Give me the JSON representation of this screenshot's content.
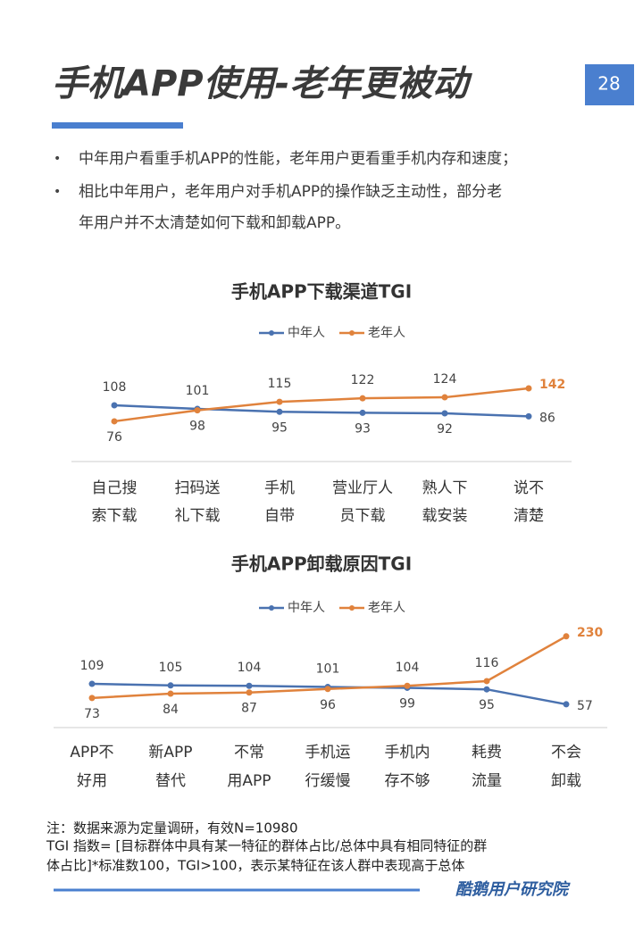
{
  "header": {
    "title": "手机APP使用-老年更被动",
    "page_number": "28"
  },
  "bullets": [
    "中年用户看重手机APP的性能，老年用户更看重手机内存和速度；",
    "相比中年用户，老年用户对手机APP的操作缺乏主动性，部分老",
    "年用户并不太清楚如何下载和卸载APP。"
  ],
  "chart_data": [
    {
      "type": "line",
      "title": "手机APP下载渠道TGI",
      "categories": [
        [
          "自己搜",
          "索下载"
        ],
        [
          "扫码送",
          "礼下载"
        ],
        [
          "手机",
          "自带"
        ],
        [
          "营业厅人",
          "员下载"
        ],
        [
          "熟人下",
          "载安装"
        ],
        [
          "说不",
          "清楚"
        ]
      ],
      "series": [
        {
          "name": "中年人",
          "color": "#4a72b0",
          "values": [
            108,
            101,
            95,
            93,
            92,
            86
          ]
        },
        {
          "name": "老年人",
          "color": "#e0823c",
          "values": [
            76,
            98,
            115,
            122,
            124,
            142
          ]
        }
      ]
    },
    {
      "type": "line",
      "title": "手机APP卸载原因TGI",
      "categories": [
        [
          "APP不",
          "好用"
        ],
        [
          "新APP",
          "替代"
        ],
        [
          "不常",
          "用APP"
        ],
        [
          "手机运",
          "行缓慢"
        ],
        [
          "手机内",
          "存不够"
        ],
        [
          "耗费",
          "流量"
        ],
        [
          "不会",
          "卸载"
        ]
      ],
      "series": [
        {
          "name": "中年人",
          "color": "#4a72b0",
          "values": [
            109,
            105,
            104,
            101,
            99,
            95,
            57
          ]
        },
        {
          "name": "老年人",
          "color": "#e0823c",
          "values": [
            73,
            84,
            87,
            96,
            104,
            116,
            230
          ]
        }
      ]
    }
  ],
  "notes": [
    "注：数据来源为定量调研，有效N=10980",
    "TGI 指数= [目标群体中具有某一特征的群体占比/总体中具有相同特征的群",
    "体占比]*标准数100，TGI>100，表示某特征在该人群中表现高于总体"
  ],
  "brand": "酷鹅用户研究院"
}
